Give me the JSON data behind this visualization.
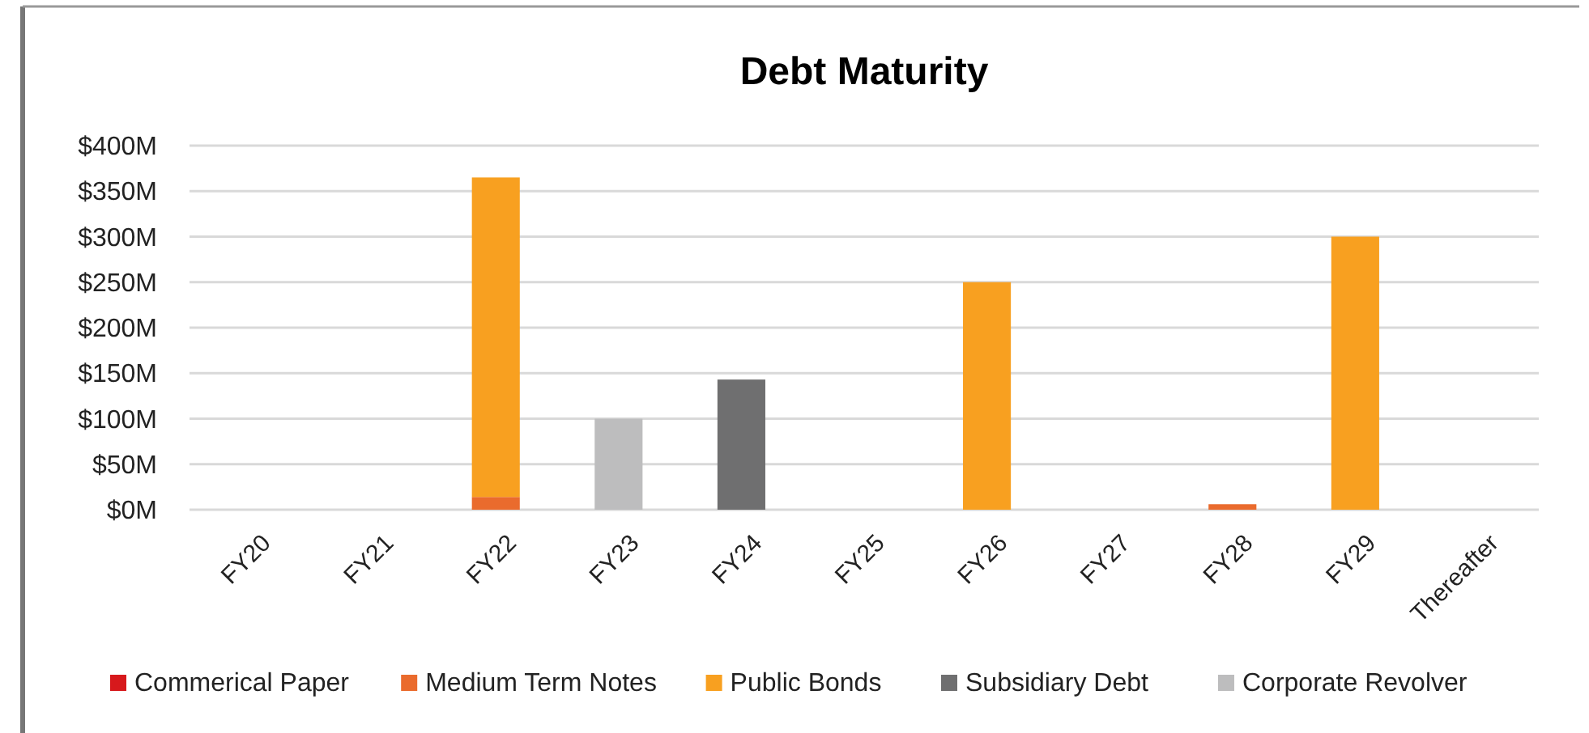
{
  "chart_data": {
    "type": "bar",
    "title": "Debt Maturity",
    "stacked": true,
    "grid": "y",
    "legend": "bottom",
    "categories": [
      "FY20",
      "FY21",
      "FY22",
      "FY23",
      "FY24",
      "FY25",
      "FY26",
      "FY27",
      "FY28",
      "FY29",
      "Thereafter"
    ],
    "ylim": [
      0,
      400
    ],
    "yticks": [
      {
        "value": 0,
        "label": "$0M"
      },
      {
        "value": 50,
        "label": "$50M"
      },
      {
        "value": 100,
        "label": "$100M"
      },
      {
        "value": 150,
        "label": "$150M"
      },
      {
        "value": 200,
        "label": "$200M"
      },
      {
        "value": 250,
        "label": "$250M"
      },
      {
        "value": 300,
        "label": "$300M"
      },
      {
        "value": 350,
        "label": "$350M"
      },
      {
        "value": 400,
        "label": "$400M"
      }
    ],
    "series": [
      {
        "name": "Commerical Paper",
        "color": "#d7191c",
        "values": [
          0,
          0,
          0,
          0,
          0,
          0,
          0,
          0,
          0,
          0,
          0
        ]
      },
      {
        "name": "Medium Term Notes",
        "color": "#ea6b2d",
        "values": [
          0,
          0,
          14,
          0,
          0,
          0,
          0,
          0,
          6,
          0,
          0
        ]
      },
      {
        "name": "Public Bonds",
        "color": "#f8a020",
        "values": [
          0,
          0,
          351,
          0,
          0,
          0,
          250,
          0,
          0,
          300,
          0
        ]
      },
      {
        "name": "Subsidiary Debt",
        "color": "#6f6f70",
        "values": [
          0,
          0,
          0,
          0,
          143,
          0,
          0,
          0,
          0,
          0,
          0
        ]
      },
      {
        "name": "Corporate Revolver",
        "color": "#bdbdbe",
        "values": [
          0,
          0,
          0,
          100,
          0,
          0,
          0,
          0,
          0,
          0,
          0
        ]
      }
    ]
  }
}
